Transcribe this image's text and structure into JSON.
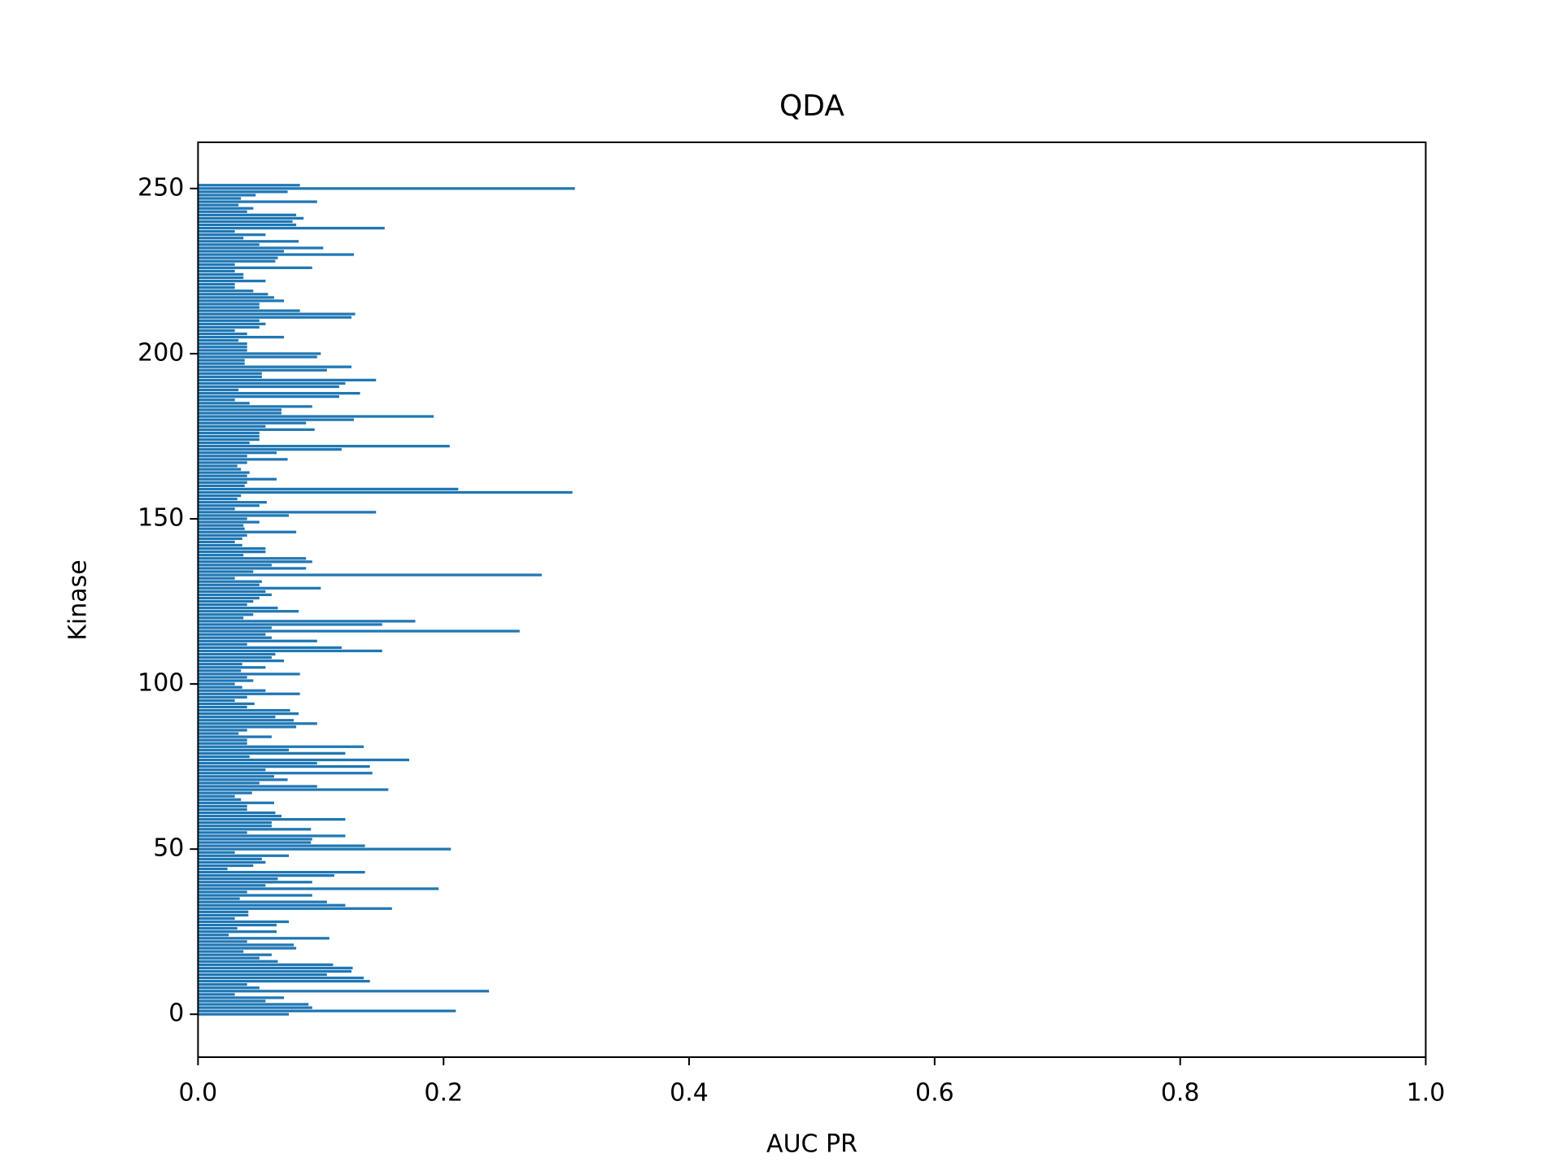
{
  "chart_data": {
    "type": "barh",
    "title": "QDA",
    "xlabel": "AUC PR",
    "ylabel": "Kinase",
    "color": "#1f77b4",
    "bar_height": 0.8,
    "xlim": [
      0,
      1
    ],
    "xticks": [
      {
        "value": 0,
        "label": "0.0"
      },
      0.2,
      0.4,
      0.6,
      0.8,
      {
        "value": 1,
        "label": "1.0"
      }
    ],
    "ylim": [
      -12.99,
      263.99
    ],
    "yticks": [
      0,
      50,
      100,
      150,
      200,
      250
    ],
    "categories": [
      0,
      1,
      2,
      3,
      4,
      5,
      6,
      7,
      8,
      9,
      10,
      11,
      12,
      13,
      14,
      15,
      16,
      17,
      18,
      19,
      20,
      21,
      22,
      23,
      24,
      25,
      26,
      27,
      28,
      29,
      30,
      31,
      32,
      33,
      34,
      35,
      36,
      37,
      38,
      39,
      40,
      41,
      42,
      43,
      44,
      45,
      46,
      47,
      48,
      49,
      50,
      51,
      52,
      53,
      54,
      55,
      56,
      57,
      58,
      59,
      60,
      61,
      62,
      63,
      64,
      65,
      66,
      67,
      68,
      69,
      70,
      71,
      72,
      73,
      74,
      75,
      76,
      77,
      78,
      79,
      80,
      81,
      82,
      83,
      84,
      85,
      86,
      87,
      88,
      89,
      90,
      91,
      92,
      93,
      94,
      95,
      96,
      97,
      98,
      99,
      100,
      101,
      102,
      103,
      104,
      105,
      106,
      107,
      108,
      109,
      110,
      111,
      112,
      113,
      114,
      115,
      116,
      117,
      118,
      119,
      120,
      121,
      122,
      123,
      124,
      125,
      126,
      127,
      128,
      129,
      130,
      131,
      132,
      133,
      134,
      135,
      136,
      137,
      138,
      139,
      140,
      141,
      142,
      143,
      144,
      145,
      146,
      147,
      148,
      149,
      150,
      151,
      152,
      153,
      154,
      155,
      156,
      157,
      158,
      159,
      160,
      161,
      162,
      163,
      164,
      165,
      166,
      167,
      168,
      169,
      170,
      171,
      172,
      173,
      174,
      175,
      176,
      177,
      178,
      179,
      180,
      181,
      182,
      183,
      184,
      185,
      186,
      187,
      188,
      189,
      190,
      191,
      192,
      193,
      194,
      195,
      196,
      197,
      198,
      199,
      200,
      201,
      202,
      203,
      204,
      205,
      206,
      207,
      208,
      209,
      210,
      211,
      212,
      213,
      214,
      215,
      216,
      217,
      218,
      219,
      220,
      221,
      222,
      223,
      224,
      225,
      226,
      227,
      228,
      229,
      230,
      231,
      232,
      233,
      234,
      235,
      236,
      237,
      238,
      239,
      240,
      241,
      242,
      243,
      244,
      245,
      246,
      247,
      248,
      249,
      250,
      251
    ],
    "values": [
      0.074,
      0.21,
      0.093,
      0.09,
      0.055,
      0.07,
      0.03,
      0.237,
      0.05,
      0.04,
      0.14,
      0.135,
      0.105,
      0.125,
      0.126,
      0.11,
      0.065,
      0.05,
      0.06,
      0.037,
      0.08,
      0.078,
      0.04,
      0.107,
      0.025,
      0.064,
      0.032,
      0.064,
      0.074,
      0.03,
      0.041,
      0.041,
      0.158,
      0.12,
      0.105,
      0.034,
      0.093,
      0.04,
      0.196,
      0.055,
      0.093,
      0.065,
      0.111,
      0.136,
      0.024,
      0.045,
      0.055,
      0.052,
      0.074,
      0.03,
      0.206,
      0.136,
      0.092,
      0.093,
      0.12,
      0.04,
      0.092,
      0.06,
      0.06,
      0.12,
      0.068,
      0.063,
      0.04,
      0.04,
      0.062,
      0.035,
      0.03,
      0.044,
      0.155,
      0.097,
      0.05,
      0.073,
      0.062,
      0.142,
      0.055,
      0.14,
      0.097,
      0.172,
      0.042,
      0.12,
      0.074,
      0.135,
      0.04,
      0.04,
      0.06,
      0.033,
      0.04,
      0.08,
      0.097,
      0.078,
      0.063,
      0.082,
      0.075,
      0.04,
      0.046,
      0.03,
      0.04,
      0.083,
      0.055,
      0.036,
      0.03,
      0.045,
      0.04,
      0.083,
      0.035,
      0.055,
      0.036,
      0.07,
      0.06,
      0.063,
      0.15,
      0.117,
      0.04,
      0.097,
      0.06,
      0.055,
      0.262,
      0.06,
      0.15,
      0.177,
      0.037,
      0.045,
      0.082,
      0.065,
      0.04,
      0.045,
      0.05,
      0.06,
      0.055,
      0.1,
      0.05,
      0.052,
      0.03,
      0.28,
      0.045,
      0.088,
      0.06,
      0.093,
      0.088,
      0.037,
      0.055,
      0.055,
      0.036,
      0.03,
      0.036,
      0.04,
      0.08,
      0.038,
      0.037,
      0.05,
      0.04,
      0.074,
      0.145,
      0.03,
      0.05,
      0.056,
      0.032,
      0.035,
      0.305,
      0.212,
      0.038,
      0.04,
      0.064,
      0.04,
      0.042,
      0.035,
      0.032,
      0.04,
      0.073,
      0.04,
      0.064,
      0.117,
      0.205,
      0.042,
      0.05,
      0.05,
      0.05,
      0.095,
      0.055,
      0.088,
      0.127,
      0.192,
      0.068,
      0.068,
      0.093,
      0.042,
      0.03,
      0.115,
      0.132,
      0.033,
      0.115,
      0.12,
      0.145,
      0.052,
      0.052,
      0.105,
      0.125,
      0.038,
      0.038,
      0.097,
      0.1,
      0.04,
      0.04,
      0.04,
      0.033,
      0.07,
      0.04,
      0.03,
      0.05,
      0.055,
      0.05,
      0.125,
      0.128,
      0.083,
      0.05,
      0.05,
      0.07,
      0.062,
      0.057,
      0.045,
      0.03,
      0.03,
      0.055,
      0.037,
      0.037,
      0.03,
      0.093,
      0.03,
      0.063,
      0.065,
      0.127,
      0.07,
      0.102,
      0.05,
      0.082,
      0.037,
      0.055,
      0.03,
      0.152,
      0.08,
      0.077,
      0.086,
      0.08,
      0.04,
      0.045,
      0.033,
      0.097,
      0.035,
      0.047,
      0.073,
      0.307,
      0.083
    ]
  }
}
